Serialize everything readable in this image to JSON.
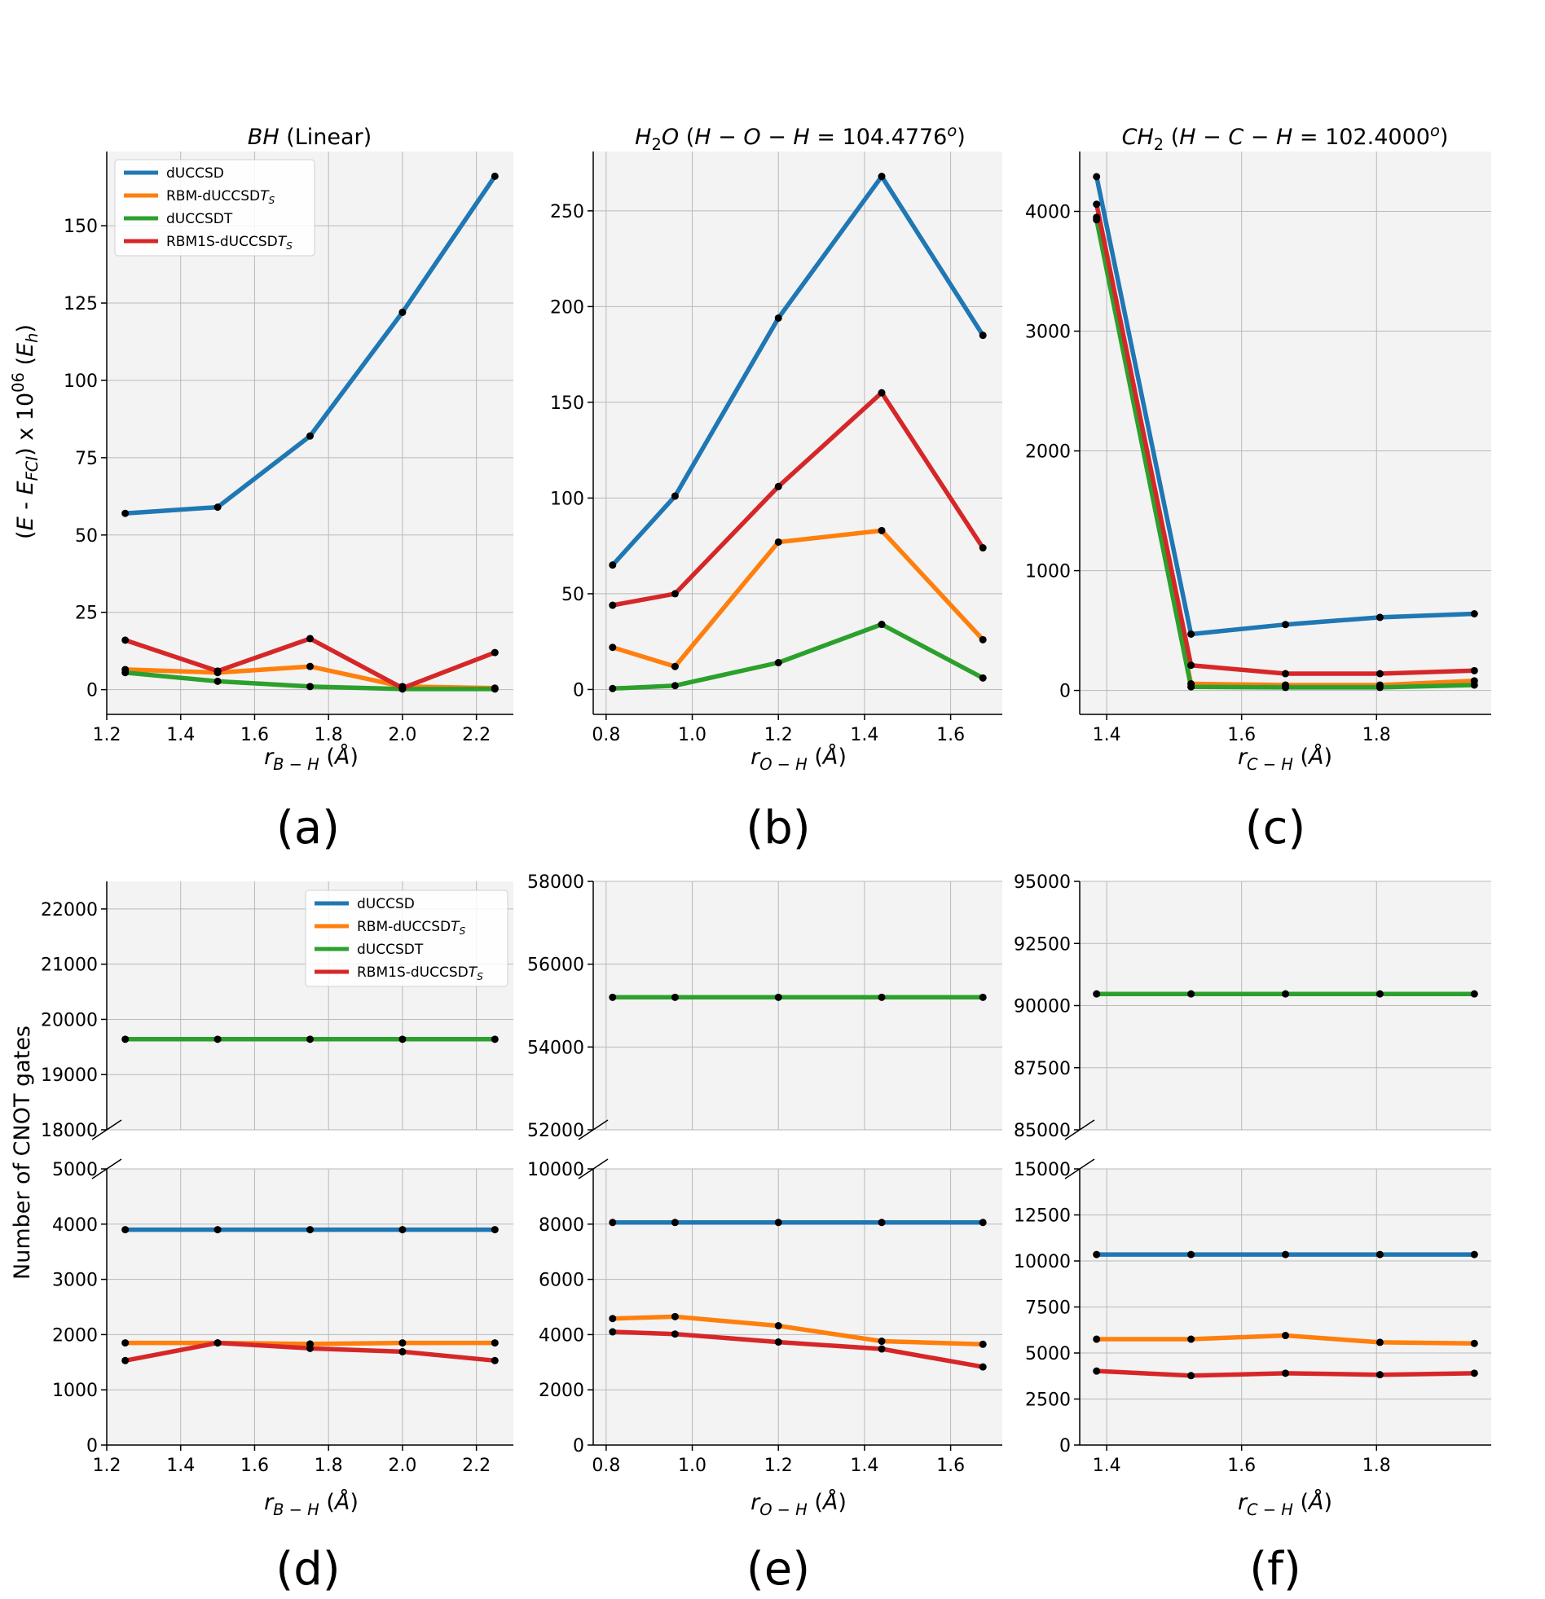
{
  "colors": {
    "dUCCSD": "#1f77b4",
    "RBM-dUCCSDT_S": "#ff7f0e",
    "dUCCSDT": "#2ca02c",
    "RBM1S-dUCCSDT_S": "#d62728",
    "panel_bg": "#f3f3f3",
    "grid": "#b9b9b9"
  },
  "legend_labels": [
    "dUCCSD",
    "RBM-dUCCSDT_S",
    "dUCCSDT",
    "RBM1S-dUCCSDT_S"
  ],
  "row_ylabels": [
    "(E - E_FCI) x 10^06  (E_h)",
    "Number of CNOT gates"
  ],
  "chart_data": [
    {
      "id": "a",
      "panel_label": "(a)",
      "type": "line",
      "title": "BH (Linear)",
      "xlabel": "r_{B-H}  (Å)",
      "x": [
        1.25,
        1.5,
        1.75,
        2.0,
        2.25
      ],
      "xlim": [
        1.2,
        2.3
      ],
      "xticks": [
        1.2,
        1.4,
        1.6,
        1.8,
        2.0,
        2.2
      ],
      "xtick_labels": [
        "1.2",
        "1.4",
        "1.6",
        "1.8",
        "2.0",
        "2.2"
      ],
      "ylim": [
        -8,
        174
      ],
      "yticks": [
        0,
        25,
        50,
        75,
        100,
        125,
        150
      ],
      "ytick_labels": [
        "0",
        "25",
        "50",
        "75",
        "100",
        "125",
        "150"
      ],
      "series": [
        {
          "name": "dUCCSD",
          "values": [
            57,
            59,
            82,
            122,
            166
          ]
        },
        {
          "name": "RBM-dUCCSDT_S",
          "values": [
            6.5,
            5.5,
            7.5,
            1,
            0.5
          ]
        },
        {
          "name": "dUCCSDT",
          "values": [
            5.5,
            2.7,
            1,
            0.2,
            0.2
          ]
        },
        {
          "name": "RBM1S-dUCCSDT_S",
          "values": [
            16,
            6,
            16.5,
            0.5,
            12
          ]
        }
      ],
      "legend": "top-left"
    },
    {
      "id": "b",
      "panel_label": "(b)",
      "type": "line",
      "title": "H2O (H-O-H = 104.4776°)",
      "xlabel": "r_{O-H}  (Å)",
      "x": [
        0.815,
        0.96,
        1.2,
        1.44,
        1.675
      ],
      "xlim": [
        0.77,
        1.72
      ],
      "xticks": [
        0.8,
        1.0,
        1.2,
        1.4,
        1.6
      ],
      "xtick_labels": [
        "0.8",
        "1.0",
        "1.2",
        "1.4",
        "1.6"
      ],
      "ylim": [
        -13,
        281
      ],
      "yticks": [
        0,
        50,
        100,
        150,
        200,
        250
      ],
      "ytick_labels": [
        "0",
        "50",
        "100",
        "150",
        "200",
        "250"
      ],
      "series": [
        {
          "name": "dUCCSD",
          "values": [
            65,
            101,
            194,
            268,
            185
          ]
        },
        {
          "name": "RBM-dUCCSDT_S",
          "values": [
            22,
            12,
            77,
            83,
            26
          ]
        },
        {
          "name": "dUCCSDT",
          "values": [
            0.5,
            2,
            14,
            34,
            6
          ]
        },
        {
          "name": "RBM1S-dUCCSDT_S",
          "values": [
            44,
            50,
            106,
            155,
            74
          ]
        }
      ]
    },
    {
      "id": "c",
      "panel_label": "(c)",
      "type": "line",
      "title": "CH2 (H-C-H = 102.4000°)",
      "xlabel": "r_{C-H}  (Å)",
      "x": [
        1.385,
        1.525,
        1.665,
        1.805,
        1.945
      ],
      "xlim": [
        1.36,
        1.97
      ],
      "xticks": [
        1.4,
        1.6,
        1.8
      ],
      "xtick_labels": [
        "1.4",
        "1.6",
        "1.8"
      ],
      "ylim": [
        -200,
        4500
      ],
      "yticks": [
        0,
        1000,
        2000,
        3000,
        4000
      ],
      "ytick_labels": [
        "0",
        "1000",
        "2000",
        "3000",
        "4000"
      ],
      "series": [
        {
          "name": "dUCCSD",
          "values": [
            4290,
            470,
            550,
            610,
            640
          ]
        },
        {
          "name": "RBM-dUCCSDT_S",
          "values": [
            3950,
            55,
            45,
            45,
            80
          ]
        },
        {
          "name": "dUCCSDT",
          "values": [
            3930,
            30,
            25,
            25,
            45
          ]
        },
        {
          "name": "RBM1S-dUCCSDT_S",
          "values": [
            4060,
            210,
            140,
            140,
            165
          ]
        }
      ]
    },
    {
      "id": "d",
      "panel_label": "(d)",
      "type": "line",
      "broken_axis": true,
      "title": "",
      "xlabel": "r_{B-H}  (Å)",
      "x": [
        1.25,
        1.5,
        1.75,
        2.0,
        2.25
      ],
      "xlim": [
        1.2,
        2.3
      ],
      "xticks": [
        1.2,
        1.4,
        1.6,
        1.8,
        2.0,
        2.2
      ],
      "xtick_labels": [
        "1.2",
        "1.4",
        "1.6",
        "1.8",
        "2.0",
        "2.2"
      ],
      "upper_ylim": [
        18000,
        22500
      ],
      "upper_yticks": [
        18000,
        19000,
        20000,
        21000,
        22000
      ],
      "upper_ytick_labels": [
        "18000",
        "19000",
        "20000",
        "21000",
        "22000"
      ],
      "lower_ylim": [
        0,
        5000
      ],
      "lower_yticks": [
        0,
        1000,
        2000,
        3000,
        4000,
        5000
      ],
      "lower_ytick_labels": [
        "0",
        "1000",
        "2000",
        "3000",
        "4000",
        "5000"
      ],
      "series": [
        {
          "name": "dUCCSD",
          "values": [
            3900,
            3900,
            3900,
            3900,
            3900
          ]
        },
        {
          "name": "RBM-dUCCSDT_S",
          "values": [
            1850,
            1850,
            1830,
            1850,
            1850
          ]
        },
        {
          "name": "dUCCSDT",
          "values": [
            19640,
            19640,
            19640,
            19640,
            19640
          ]
        },
        {
          "name": "RBM1S-dUCCSDT_S",
          "values": [
            1530,
            1850,
            1750,
            1690,
            1530
          ]
        }
      ],
      "legend": "top-right"
    },
    {
      "id": "e",
      "panel_label": "(e)",
      "type": "line",
      "broken_axis": true,
      "title": "",
      "xlabel": "r_{O-H}  (Å)",
      "x": [
        0.815,
        0.96,
        1.2,
        1.44,
        1.675
      ],
      "xlim": [
        0.77,
        1.72
      ],
      "xticks": [
        0.8,
        1.0,
        1.2,
        1.4,
        1.6
      ],
      "xtick_labels": [
        "0.8",
        "1.0",
        "1.2",
        "1.4",
        "1.6"
      ],
      "upper_ylim": [
        52000,
        58000
      ],
      "upper_yticks": [
        52000,
        54000,
        56000,
        58000
      ],
      "upper_ytick_labels": [
        "52000",
        "54000",
        "56000",
        "58000"
      ],
      "lower_ylim": [
        0,
        10000
      ],
      "lower_yticks": [
        0,
        2000,
        4000,
        6000,
        8000,
        10000
      ],
      "lower_ytick_labels": [
        "0",
        "2000",
        "4000",
        "6000",
        "8000",
        "10000"
      ],
      "series": [
        {
          "name": "dUCCSD",
          "values": [
            8060,
            8060,
            8060,
            8060,
            8060
          ]
        },
        {
          "name": "RBM-dUCCSDT_S",
          "values": [
            4580,
            4650,
            4320,
            3760,
            3650
          ]
        },
        {
          "name": "dUCCSDT",
          "values": [
            55200,
            55200,
            55200,
            55200,
            55200
          ]
        },
        {
          "name": "RBM1S-dUCCSDT_S",
          "values": [
            4100,
            4020,
            3730,
            3480,
            2830
          ]
        }
      ]
    },
    {
      "id": "f",
      "panel_label": "(f)",
      "type": "line",
      "broken_axis": true,
      "title": "",
      "xlabel": "r_{C-H}  (Å)",
      "x": [
        1.385,
        1.525,
        1.665,
        1.805,
        1.945
      ],
      "xlim": [
        1.36,
        1.97
      ],
      "xticks": [
        1.4,
        1.6,
        1.8
      ],
      "xtick_labels": [
        "1.4",
        "1.6",
        "1.8"
      ],
      "upper_ylim": [
        85000,
        95000
      ],
      "upper_yticks": [
        85000,
        87500,
        90000,
        92500,
        95000
      ],
      "upper_ytick_labels": [
        "85000",
        "87500",
        "90000",
        "92500",
        "95000"
      ],
      "lower_ylim": [
        0,
        15000
      ],
      "lower_yticks": [
        0,
        2500,
        5000,
        7500,
        10000,
        12500,
        15000
      ],
      "lower_ytick_labels": [
        "0",
        "2500",
        "5000",
        "7500",
        "10000",
        "12500",
        "15000"
      ],
      "series": [
        {
          "name": "dUCCSD",
          "values": [
            10350,
            10350,
            10350,
            10350,
            10350
          ]
        },
        {
          "name": "RBM-dUCCSDT_S",
          "values": [
            5750,
            5750,
            5950,
            5580,
            5520
          ]
        },
        {
          "name": "dUCCSDT",
          "values": [
            90470,
            90470,
            90470,
            90470,
            90470
          ]
        },
        {
          "name": "RBM1S-dUCCSDT_S",
          "values": [
            4020,
            3770,
            3900,
            3820,
            3900
          ]
        }
      ]
    }
  ]
}
